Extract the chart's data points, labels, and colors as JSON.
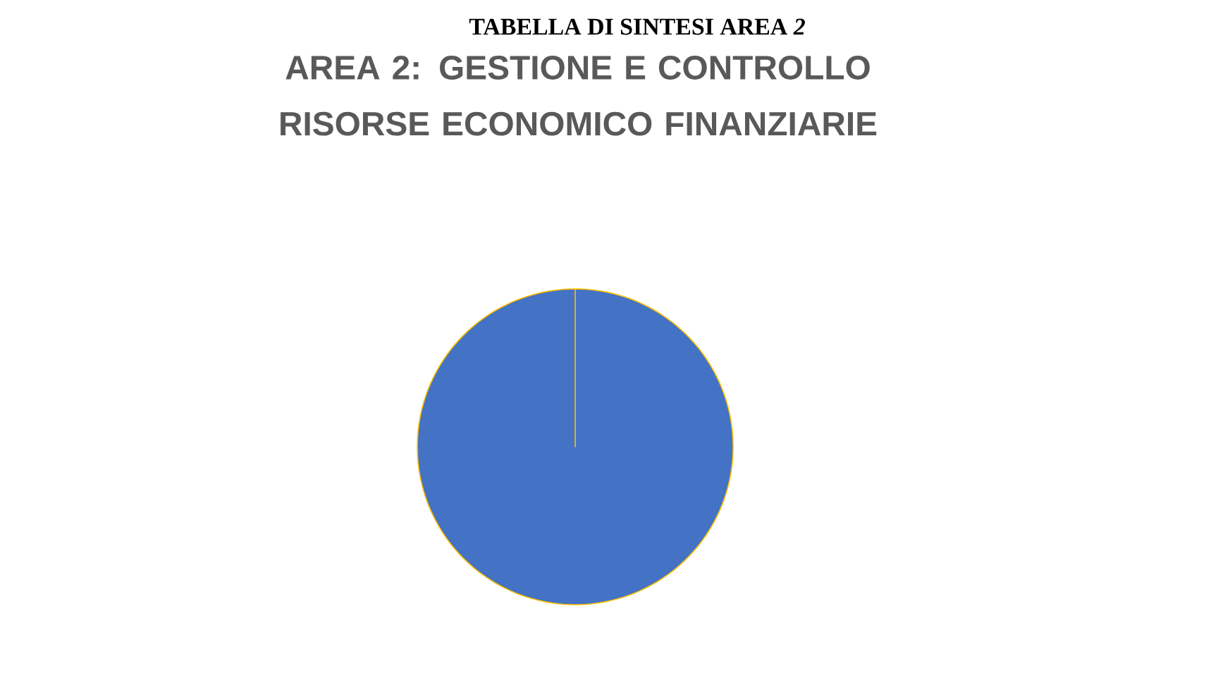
{
  "chart_data": {
    "type": "pie",
    "title": "TABELLA DI SINTESI AREA *2*",
    "subtitle": "AREA 2: GESTIONE E CONTROLLO RISORSE ECONOMICO FINANZIARIE",
    "categories": [
      null
    ],
    "values": [
      100
    ],
    "colors": [
      "#4472c4"
    ]
  }
}
